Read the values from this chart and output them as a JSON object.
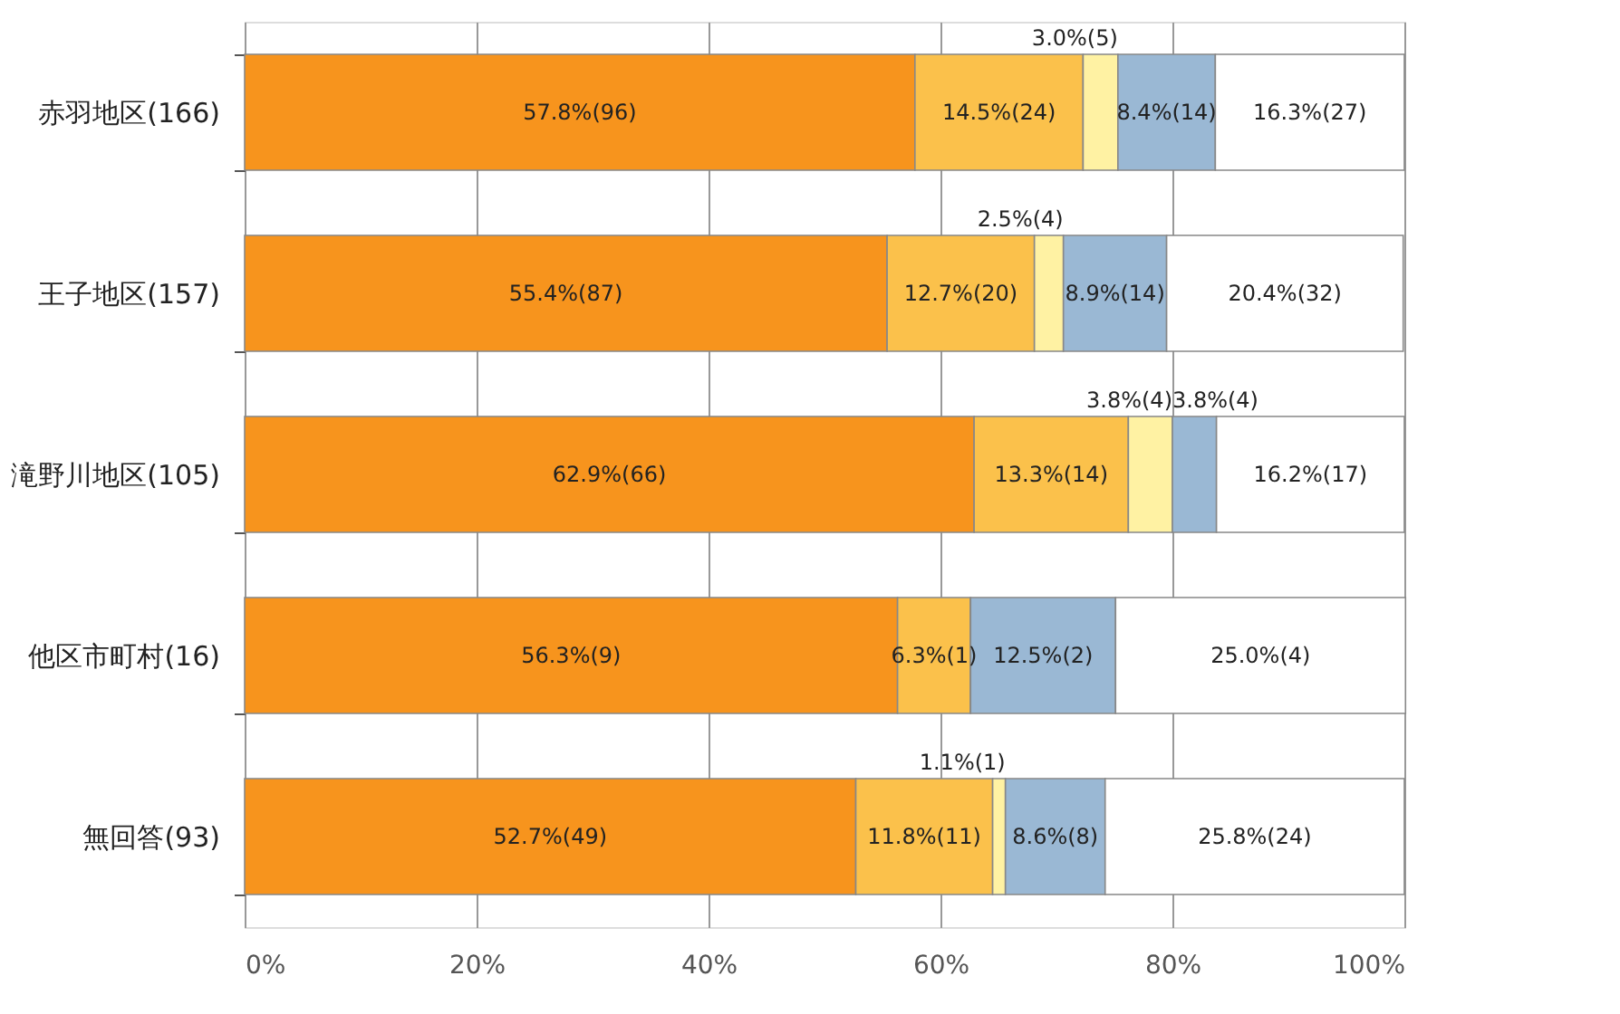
{
  "chart_data": {
    "type": "bar",
    "orientation": "horizontal",
    "stacked": true,
    "grid": "x",
    "categories": [
      "赤羽地区(166)",
      "王子地区(157)",
      "滝野川地区(105)",
      "他区市町村(16)",
      "無回答(93)"
    ],
    "xlim": [
      0,
      100
    ],
    "xticks": [
      {
        "value": 0,
        "label": "0%"
      },
      {
        "value": 20,
        "label": "20%"
      },
      {
        "value": 40,
        "label": "40%"
      },
      {
        "value": 60,
        "label": "60%"
      },
      {
        "value": 80,
        "label": "80%"
      },
      {
        "value": 100,
        "label": "100%"
      }
    ],
    "series": [
      {
        "color": "#f7941d",
        "values": [
          57.8,
          55.4,
          62.9,
          56.3,
          52.7
        ],
        "value_labels": [
          "57.8%(96)",
          "55.4%(87)",
          "62.9%(66)",
          "56.3%(9)",
          "52.7%(49)"
        ]
      },
      {
        "color": "#fbc14b",
        "values": [
          14.5,
          12.7,
          13.3,
          6.3,
          11.8
        ],
        "value_labels": [
          "14.5%(24)",
          "12.7%(20)",
          "13.3%(14)",
          "6.3%(1)",
          "11.8%(11)"
        ]
      },
      {
        "color": "#fff2a3",
        "values": [
          3.0,
          2.5,
          3.8,
          0,
          1.1
        ],
        "value_labels": [
          "3.0%(5)",
          "2.5%(4)",
          "3.8%(4)",
          null,
          "1.1%(1)"
        ]
      },
      {
        "color": "#9ab8d4",
        "values": [
          8.4,
          8.9,
          3.8,
          12.5,
          8.6
        ],
        "value_labels": [
          "8.4%(14)",
          "8.9%(14)",
          "3.8%(4)",
          "12.5%(2)",
          "8.6%(8)"
        ]
      },
      {
        "color": "#ffffff",
        "values": [
          16.3,
          20.4,
          16.2,
          25.0,
          25.8
        ],
        "value_labels": [
          "16.3%(27)",
          "20.4%(32)",
          "16.2%(17)",
          "25.0%(4)",
          "25.8%(24)"
        ]
      }
    ]
  }
}
